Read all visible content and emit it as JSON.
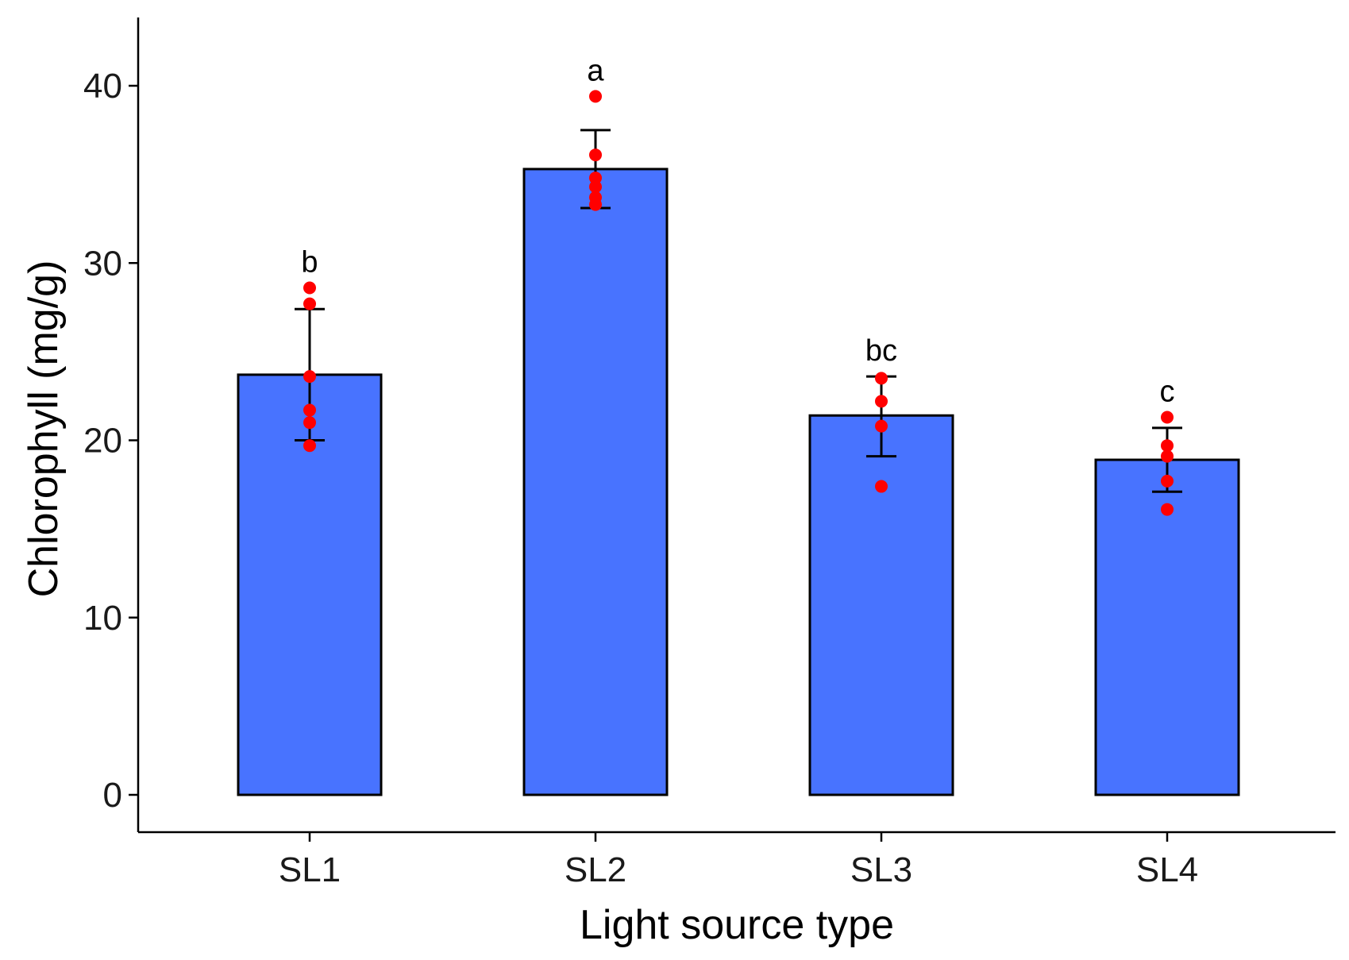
{
  "chart_data": {
    "type": "bar",
    "title": "",
    "xlabel": "Light source type",
    "ylabel": "Chlorophyll (mg/g)",
    "ylim": [
      -2,
      44
    ],
    "yticks": [
      0,
      10,
      20,
      30,
      40
    ],
    "grid": false,
    "categories": [
      "SL1",
      "SL2",
      "SL3",
      "SL4"
    ],
    "values": [
      23.7,
      35.3,
      21.4,
      18.9
    ],
    "error_low": [
      20.0,
      33.1,
      19.1,
      17.1
    ],
    "error_high": [
      27.4,
      37.5,
      23.6,
      20.7
    ],
    "points": [
      [
        28.6,
        27.7,
        23.6,
        21.7,
        21.0,
        19.7
      ],
      [
        39.4,
        36.1,
        34.8,
        34.3,
        33.7,
        33.3
      ],
      [
        23.5,
        22.2,
        20.8,
        17.4
      ],
      [
        21.3,
        19.7,
        19.1,
        17.7,
        16.1
      ]
    ],
    "significance_letters": [
      "b",
      "a",
      "bc",
      "c"
    ],
    "bar_color": "#4873FF",
    "point_color": "#FF0000"
  }
}
